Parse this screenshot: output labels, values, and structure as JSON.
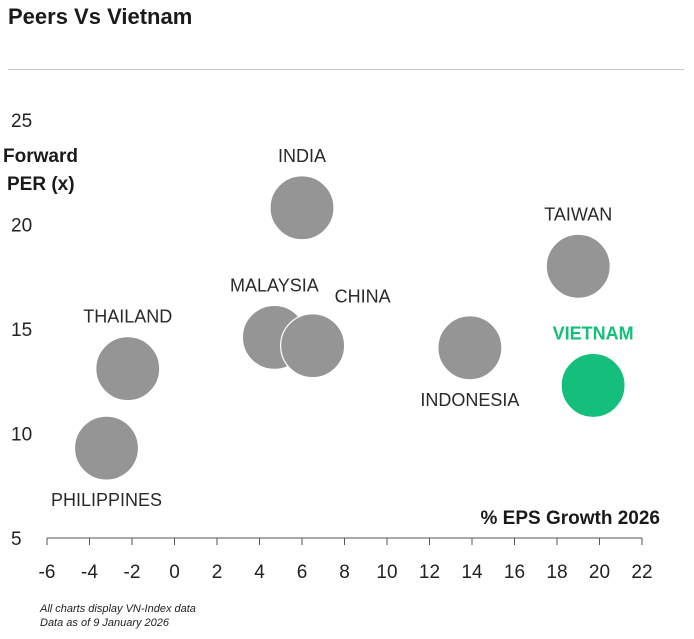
{
  "title": "Peers Vs Vietnam",
  "footnotes": [
    "All charts display VN-Index data",
    "Data as of 9 January 2026"
  ],
  "colors": {
    "bubble": "#959595",
    "highlight": "#13bf7a",
    "axis": "#555555",
    "rule": "#c8c8c8"
  },
  "chart_data": {
    "type": "scatter",
    "title": "Peers Vs Vietnam",
    "ylabel": [
      "Forward",
      "PER (x)"
    ],
    "xlabel": "% EPS Growth 2026",
    "xlim": [
      -6,
      22
    ],
    "ylim": [
      5,
      25
    ],
    "xticks": [
      -6,
      -4,
      -2,
      0,
      2,
      4,
      6,
      8,
      10,
      12,
      14,
      16,
      18,
      20,
      22
    ],
    "yticks": [
      5,
      10,
      15,
      20,
      25
    ],
    "grid": false,
    "points": [
      {
        "name": "INDIA",
        "x": 6.0,
        "y": 20.8,
        "label_pos": "above"
      },
      {
        "name": "TAIWAN",
        "x": 19.0,
        "y": 18.0,
        "label_pos": "above"
      },
      {
        "name": "MALAYSIA",
        "x": 4.7,
        "y": 14.6,
        "label_pos": "above"
      },
      {
        "name": "CHINA",
        "x": 6.5,
        "y": 14.2,
        "label_pos": "above-right"
      },
      {
        "name": "THAILAND",
        "x": -2.2,
        "y": 13.1,
        "label_pos": "above"
      },
      {
        "name": "INDONESIA",
        "x": 13.9,
        "y": 14.1,
        "label_pos": "below"
      },
      {
        "name": "VIETNAM",
        "x": 19.7,
        "y": 12.3,
        "label_pos": "above",
        "highlight": true
      },
      {
        "name": "PHILIPPINES",
        "x": -3.2,
        "y": 9.3,
        "label_pos": "below"
      }
    ]
  }
}
